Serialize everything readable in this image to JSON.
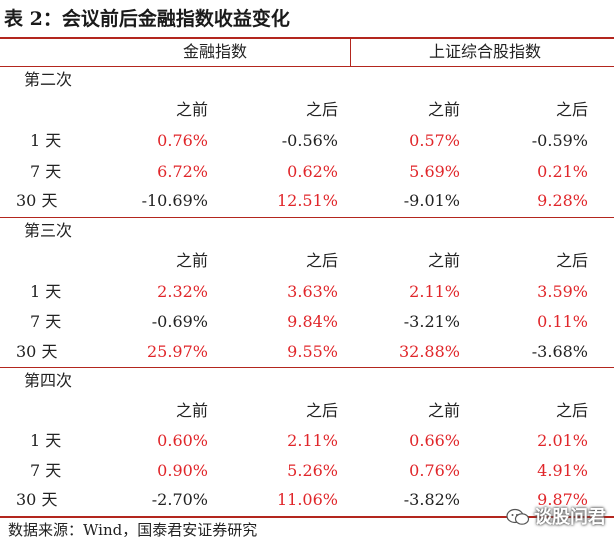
{
  "title": "表 2：会议前后金融指数收益变化",
  "headers": {
    "group1": "金融指数",
    "group2": "上证综合股指数"
  },
  "sub_headers": [
    "之前",
    "之后",
    "之前",
    "之后"
  ],
  "sections": [
    {
      "name": "第二次",
      "rows": [
        {
          "label": "1 天",
          "values": [
            "0.76%",
            "-0.56%",
            "0.57%",
            "-0.59%"
          ]
        },
        {
          "label": "7 天",
          "values": [
            "6.72%",
            "0.62%",
            "5.69%",
            "0.21%"
          ]
        },
        {
          "label": "30 天",
          "values": [
            "-10.69%",
            "12.51%",
            "-9.01%",
            "9.28%"
          ]
        }
      ]
    },
    {
      "name": "第三次",
      "rows": [
        {
          "label": "1 天",
          "values": [
            "2.32%",
            "3.63%",
            "2.11%",
            "3.59%"
          ]
        },
        {
          "label": "7 天",
          "values": [
            "-0.69%",
            "9.84%",
            "-3.21%",
            "0.11%"
          ]
        },
        {
          "label": "30 天",
          "values": [
            "25.97%",
            "9.55%",
            "32.88%",
            "-3.68%"
          ]
        }
      ]
    },
    {
      "name": "第四次",
      "rows": [
        {
          "label": "1 天",
          "values": [
            "0.60%",
            "2.11%",
            "0.66%",
            "2.01%"
          ]
        },
        {
          "label": "7 天",
          "values": [
            "0.90%",
            "5.26%",
            "0.76%",
            "4.91%"
          ]
        },
        {
          "label": "30 天",
          "values": [
            "-2.70%",
            "11.06%",
            "-3.82%",
            "9.87%"
          ]
        }
      ]
    }
  ],
  "source": "数据来源：Wind，国泰君安证券研究",
  "watermark": "谈股问君",
  "colors": {
    "positive": "#e0262a",
    "negative": "#222222",
    "rule": "#b3261e"
  }
}
